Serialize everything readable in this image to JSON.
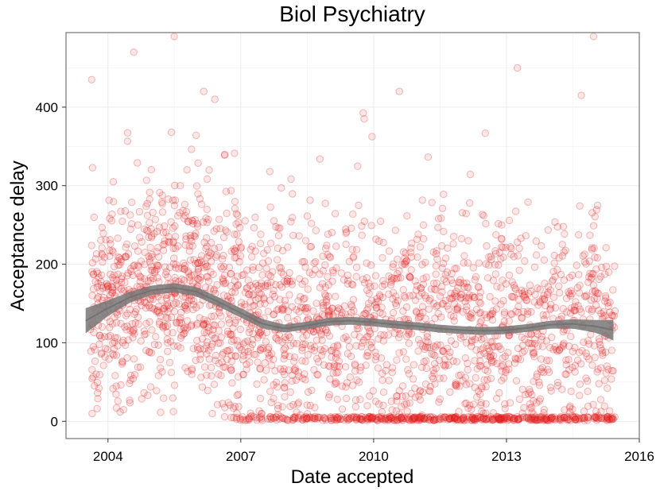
{
  "chart_data": {
    "type": "scatter",
    "title": "Biol Psychiatry",
    "xlabel": "Date accepted",
    "ylabel": "Acceptance delay",
    "x_ticks": [
      "2004",
      "2007",
      "2010",
      "2013",
      "2016"
    ],
    "y_ticks": [
      "0",
      "100",
      "200",
      "300",
      "400"
    ],
    "xlim": [
      "2003-01-20",
      "2016-01-01"
    ],
    "ylim": [
      -22,
      495
    ],
    "grid": true,
    "point_color": "#e41a1c",
    "smooth_color": "#6e6e6e",
    "smooth": {
      "x": [
        "2003-07-01",
        "2004-01-01",
        "2004-07-01",
        "2005-01-01",
        "2005-07-01",
        "2006-01-01",
        "2006-07-01",
        "2007-01-01",
        "2007-07-01",
        "2008-01-01",
        "2008-07-01",
        "2009-01-01",
        "2009-07-01",
        "2010-01-01",
        "2010-07-01",
        "2011-01-01",
        "2011-07-01",
        "2012-01-01",
        "2012-07-01",
        "2013-01-01",
        "2013-07-01",
        "2014-01-01",
        "2014-07-01",
        "2015-01-01",
        "2015-06-01"
      ],
      "y": [
        128,
        144,
        158,
        167,
        170,
        165,
        152,
        138,
        124,
        118,
        122,
        127,
        128,
        126,
        123,
        121,
        118,
        116,
        115,
        116,
        119,
        123,
        124,
        121,
        116
      ],
      "se": [
        16,
        10,
        7,
        6,
        6,
        6,
        6,
        6,
        6,
        5,
        5,
        5,
        5,
        5,
        5,
        5,
        5,
        5,
        5,
        5,
        5,
        5,
        6,
        8,
        13
      ]
    },
    "points": {
      "note": "approx. 3000 accepted manuscripts; individual values estimated from density",
      "x": [
        "2003-09-01",
        "2003-11-15",
        "2004-03-10",
        "2004-06-20",
        "2004-09-05",
        "2004-12-01",
        "2005-02-15",
        "2005-05-10",
        "2005-08-20",
        "2005-11-05",
        "2006-02-01",
        "2006-04-15",
        "2006-07-01",
        "2006-10-10",
        "2007-01-20",
        "2007-05-05",
        "2007-08-15",
        "2007-12-01",
        "2008-03-10",
        "2008-06-20",
        "2008-10-01",
        "2009-01-15",
        "2009-05-01",
        "2009-08-10",
        "2009-11-20",
        "2010-03-01",
        "2010-06-10",
        "2010-09-20",
        "2011-01-05",
        "2011-04-15",
        "2011-07-25",
        "2011-11-01",
        "2012-02-10",
        "2012-05-20",
        "2012-09-01",
        "2012-12-10",
        "2013-03-20",
        "2013-07-01",
        "2013-10-10",
        "2014-01-20",
        "2014-05-01",
        "2014-08-10",
        "2014-11-20",
        "2015-03-01",
        "2015-05-15",
        "2003-08-20",
        "2004-08-01",
        "2005-07-01",
        "2006-03-01",
        "2006-06-01",
        "2009-10-15",
        "2010-08-01",
        "2013-04-01",
        "2014-09-10",
        "2014-12-20"
      ],
      "y": [
        95,
        120,
        180,
        150,
        250,
        210,
        140,
        175,
        300,
        160,
        205,
        320,
        60,
        110,
        2,
        85,
        140,
        190,
        2,
        230,
        120,
        90,
        180,
        2,
        150,
        110,
        2,
        200,
        130,
        2,
        90,
        160,
        2,
        120,
        75,
        2,
        140,
        100,
        2,
        180,
        60,
        2,
        130,
        90,
        2,
        435,
        470,
        490,
        420,
        410,
        385,
        420,
        450,
        415,
        490
      ]
    }
  }
}
